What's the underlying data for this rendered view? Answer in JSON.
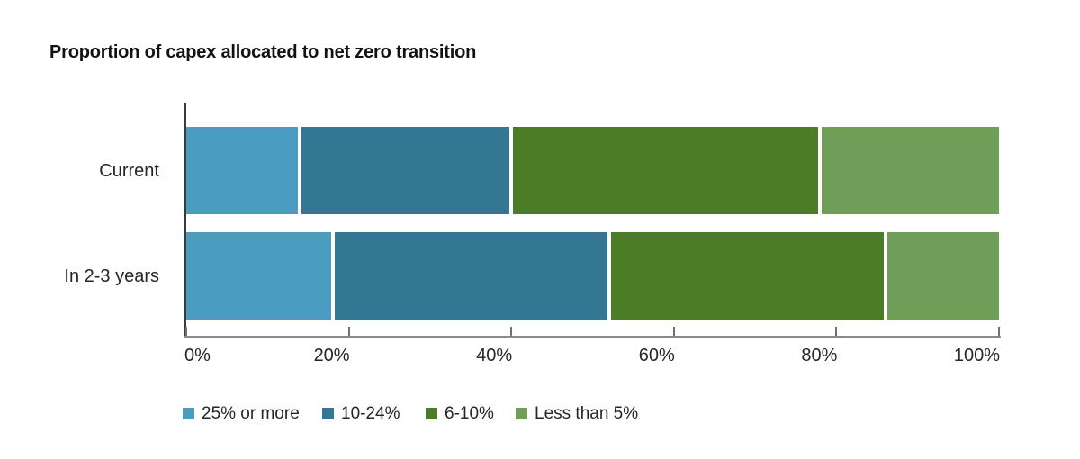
{
  "title": "Proportion of capex allocated to net zero transition",
  "chart_data": {
    "type": "bar",
    "variant": "stacked-horizontal",
    "title": "Proportion of capex allocated to net zero transition",
    "categories": [
      "Current",
      "In 2-3 years"
    ],
    "series": [
      {
        "name": "25% or more",
        "color": "#4A9CC1",
        "values": [
          14,
          18
        ]
      },
      {
        "name": "10-24%",
        "color": "#337793",
        "values": [
          26,
          34
        ]
      },
      {
        "name": "6-10%",
        "color": "#4C7D26",
        "values": [
          38,
          34
        ]
      },
      {
        "name": "Less than 5%",
        "color": "#6F9E58",
        "values": [
          22,
          14
        ]
      }
    ],
    "x_ticks": [
      0,
      20,
      40,
      60,
      80,
      100
    ],
    "x_tick_labels": [
      "0%",
      "20%",
      "40%",
      "60%",
      "80%",
      "100%"
    ],
    "xlim": [
      0,
      100
    ],
    "unit": "%",
    "grid": false,
    "legend_position": "bottom"
  },
  "style_colors": {
    "x_axis_line": "#8a8a8a",
    "y_axis_line": "#3b3b3b",
    "tick_mark": "#707070",
    "label_text": "#262626",
    "title_text": "#121212",
    "background": "#ffffff"
  }
}
